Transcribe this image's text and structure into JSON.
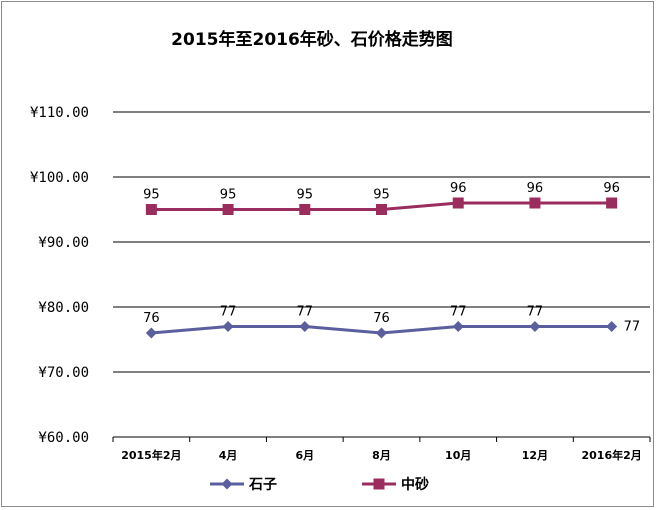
{
  "chart_data": {
    "type": "line",
    "title": "2015年至2016年砂、石价格走势图",
    "categories": [
      "2015年2月",
      "4月",
      "6月",
      "8月",
      "10月",
      "12月",
      "2016年2月"
    ],
    "y_tick_labels": [
      "¥110.00",
      "¥100.00",
      "¥90.00",
      "¥80.00",
      "¥70.00",
      "¥60.00"
    ],
    "ylim": [
      60,
      110
    ],
    "y_ticks": [
      110,
      100,
      90,
      80,
      70,
      60
    ],
    "grid": "horizontal",
    "legend_position": "bottom",
    "series": [
      {
        "name": "石子",
        "values": [
          76,
          77,
          77,
          76,
          77,
          77,
          77
        ],
        "color": "#5b5f9e",
        "marker": "diamond"
      },
      {
        "name": "中砂",
        "values": [
          95,
          95,
          95,
          95,
          96,
          96,
          96
        ],
        "color": "#9b2d5e",
        "marker": "square"
      }
    ]
  }
}
